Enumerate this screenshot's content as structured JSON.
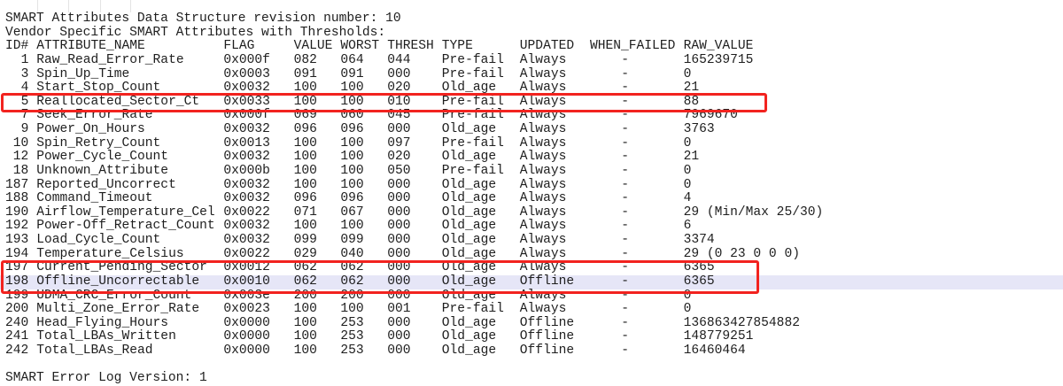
{
  "header_lines": [
    "SMART Attributes Data Structure revision number: 10",
    "Vendor Specific SMART Attributes with Thresholds:"
  ],
  "columns": [
    "ID#",
    "ATTRIBUTE_NAME",
    "FLAG",
    "VALUE",
    "WORST",
    "THRESH",
    "TYPE",
    "UPDATED",
    "WHEN_FAILED",
    "RAW_VALUE"
  ],
  "rows": [
    {
      "id": "1",
      "name": "Raw_Read_Error_Rate",
      "flag": "0x000f",
      "value": "082",
      "worst": "064",
      "thresh": "044",
      "type": "Pre-fail",
      "updated": "Always",
      "when_failed": "-",
      "raw": "165239715"
    },
    {
      "id": "3",
      "name": "Spin_Up_Time",
      "flag": "0x0003",
      "value": "091",
      "worst": "091",
      "thresh": "000",
      "type": "Pre-fail",
      "updated": "Always",
      "when_failed": "-",
      "raw": "0"
    },
    {
      "id": "4",
      "name": "Start_Stop_Count",
      "flag": "0x0032",
      "value": "100",
      "worst": "100",
      "thresh": "020",
      "type": "Old_age",
      "updated": "Always",
      "when_failed": "-",
      "raw": "21"
    },
    {
      "id": "5",
      "name": "Reallocated_Sector_Ct",
      "flag": "0x0033",
      "value": "100",
      "worst": "100",
      "thresh": "010",
      "type": "Pre-fail",
      "updated": "Always",
      "when_failed": "-",
      "raw": "88"
    },
    {
      "id": "7",
      "name": "Seek_Error_Rate",
      "flag": "0x000f",
      "value": "069",
      "worst": "060",
      "thresh": "045",
      "type": "Pre-fail",
      "updated": "Always",
      "when_failed": "-",
      "raw": "7969670"
    },
    {
      "id": "9",
      "name": "Power_On_Hours",
      "flag": "0x0032",
      "value": "096",
      "worst": "096",
      "thresh": "000",
      "type": "Old_age",
      "updated": "Always",
      "when_failed": "-",
      "raw": "3763"
    },
    {
      "id": "10",
      "name": "Spin_Retry_Count",
      "flag": "0x0013",
      "value": "100",
      "worst": "100",
      "thresh": "097",
      "type": "Pre-fail",
      "updated": "Always",
      "when_failed": "-",
      "raw": "0"
    },
    {
      "id": "12",
      "name": "Power_Cycle_Count",
      "flag": "0x0032",
      "value": "100",
      "worst": "100",
      "thresh": "020",
      "type": "Old_age",
      "updated": "Always",
      "when_failed": "-",
      "raw": "21"
    },
    {
      "id": "18",
      "name": "Unknown_Attribute",
      "flag": "0x000b",
      "value": "100",
      "worst": "100",
      "thresh": "050",
      "type": "Pre-fail",
      "updated": "Always",
      "when_failed": "-",
      "raw": "0"
    },
    {
      "id": "187",
      "name": "Reported_Uncorrect",
      "flag": "0x0032",
      "value": "100",
      "worst": "100",
      "thresh": "000",
      "type": "Old_age",
      "updated": "Always",
      "when_failed": "-",
      "raw": "0"
    },
    {
      "id": "188",
      "name": "Command_Timeout",
      "flag": "0x0032",
      "value": "096",
      "worst": "096",
      "thresh": "000",
      "type": "Old_age",
      "updated": "Always",
      "when_failed": "-",
      "raw": "4"
    },
    {
      "id": "190",
      "name": "Airflow_Temperature_Cel",
      "flag": "0x0022",
      "value": "071",
      "worst": "067",
      "thresh": "000",
      "type": "Old_age",
      "updated": "Always",
      "when_failed": "-",
      "raw": "29 (Min/Max 25/30)"
    },
    {
      "id": "192",
      "name": "Power-Off_Retract_Count",
      "flag": "0x0032",
      "value": "100",
      "worst": "100",
      "thresh": "000",
      "type": "Old_age",
      "updated": "Always",
      "when_failed": "-",
      "raw": "6"
    },
    {
      "id": "193",
      "name": "Load_Cycle_Count",
      "flag": "0x0032",
      "value": "099",
      "worst": "099",
      "thresh": "000",
      "type": "Old_age",
      "updated": "Always",
      "when_failed": "-",
      "raw": "3374"
    },
    {
      "id": "194",
      "name": "Temperature_Celsius",
      "flag": "0x0022",
      "value": "029",
      "worst": "040",
      "thresh": "000",
      "type": "Old_age",
      "updated": "Always",
      "when_failed": "-",
      "raw": "29 (0 23 0 0 0)"
    },
    {
      "id": "197",
      "name": "Current_Pending_Sector",
      "flag": "0x0012",
      "value": "062",
      "worst": "062",
      "thresh": "000",
      "type": "Old_age",
      "updated": "Always",
      "when_failed": "-",
      "raw": "6365"
    },
    {
      "id": "198",
      "name": "Offline_Uncorrectable",
      "flag": "0x0010",
      "value": "062",
      "worst": "062",
      "thresh": "000",
      "type": "Old_age",
      "updated": "Offline",
      "when_failed": "-",
      "raw": "6365"
    },
    {
      "id": "199",
      "name": "UDMA_CRC_Error_Count",
      "flag": "0x003e",
      "value": "200",
      "worst": "200",
      "thresh": "000",
      "type": "Old_age",
      "updated": "Always",
      "when_failed": "-",
      "raw": "0"
    },
    {
      "id": "200",
      "name": "Multi_Zone_Error_Rate",
      "flag": "0x0023",
      "value": "100",
      "worst": "100",
      "thresh": "001",
      "type": "Pre-fail",
      "updated": "Always",
      "when_failed": "-",
      "raw": "0"
    },
    {
      "id": "240",
      "name": "Head_Flying_Hours",
      "flag": "0x0000",
      "value": "100",
      "worst": "253",
      "thresh": "000",
      "type": "Old_age",
      "updated": "Offline",
      "when_failed": "-",
      "raw": "136863427854882"
    },
    {
      "id": "241",
      "name": "Total_LBAs_Written",
      "flag": "0x0000",
      "value": "100",
      "worst": "253",
      "thresh": "000",
      "type": "Old_age",
      "updated": "Offline",
      "when_failed": "-",
      "raw": "148779251"
    },
    {
      "id": "242",
      "name": "Total_LBAs_Read",
      "flag": "0x0000",
      "value": "100",
      "worst": "253",
      "thresh": "000",
      "type": "Old_age",
      "updated": "Offline",
      "when_failed": "-",
      "raw": "16460464"
    }
  ],
  "footer_line": "SMART Error Log Version: 1",
  "highlight_color": "#e6e6f7",
  "annotation_color": "#f2231f"
}
